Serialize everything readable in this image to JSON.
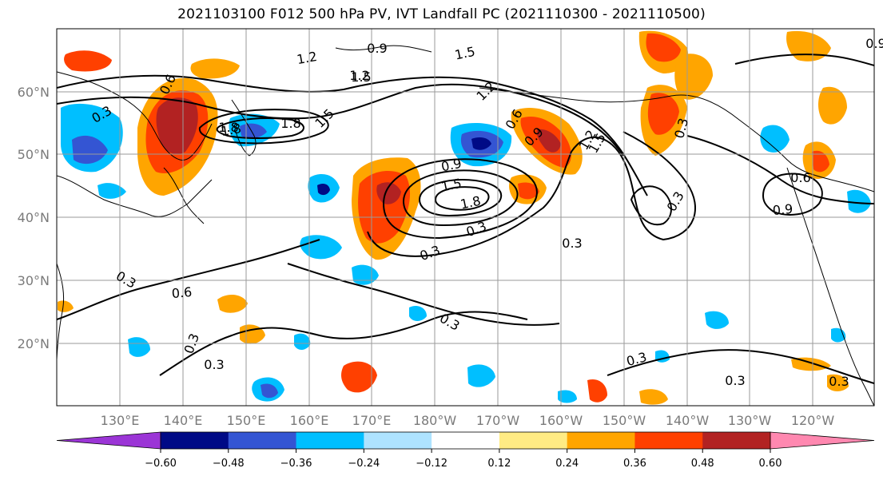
{
  "title": "2021103100 F012 500 hPa PV, IVT Landfall PC (2021110300 - 2021110500)",
  "colors": {
    "neg_1": "#9b35d6",
    "neg_2": "#000a86",
    "neg_3": "#3455d3",
    "neg_4": "#00bfff",
    "neg_5": "#aee3ff",
    "neutral": "#ffffff",
    "pos_1": "#ffeb84",
    "pos_2": "#ffa500",
    "pos_3": "#ff4000",
    "pos_4": "#b22222",
    "pos_5": "#ff88b0",
    "grid": "#9a9a9a"
  },
  "map": {
    "lat_labels": [
      "60°N",
      "50°N",
      "40°N",
      "30°N",
      "20°N"
    ],
    "lon_labels": [
      "130°E",
      "140°E",
      "150°E",
      "160°E",
      "170°E",
      "180°W",
      "170°W",
      "160°W",
      "150°W",
      "140°W",
      "130°W",
      "120°W"
    ],
    "contour_labels": [
      "1.2",
      "0.9",
      "1.5",
      "1.8",
      "1.8",
      "1.5",
      "0.6",
      "0.3",
      "1.5",
      "0.3",
      "0.3",
      "0.9",
      "1.5",
      "1.8",
      "1.2",
      "0.6",
      "0.3",
      "0.9",
      "1.2",
      "1.5",
      "0.3",
      "0.9",
      "1.8",
      "0.3",
      "1.2",
      "0.6",
      "0.9",
      "0.6",
      "0.3",
      "0.3",
      "0.3",
      "0.3",
      "0.3",
      "0.3",
      "0.3"
    ]
  },
  "colorbar": {
    "ticks": [
      "−0.60",
      "−0.48",
      "−0.36",
      "−0.24",
      "−0.12",
      "0.12",
      "0.24",
      "0.36",
      "0.48",
      "0.60"
    ]
  }
}
